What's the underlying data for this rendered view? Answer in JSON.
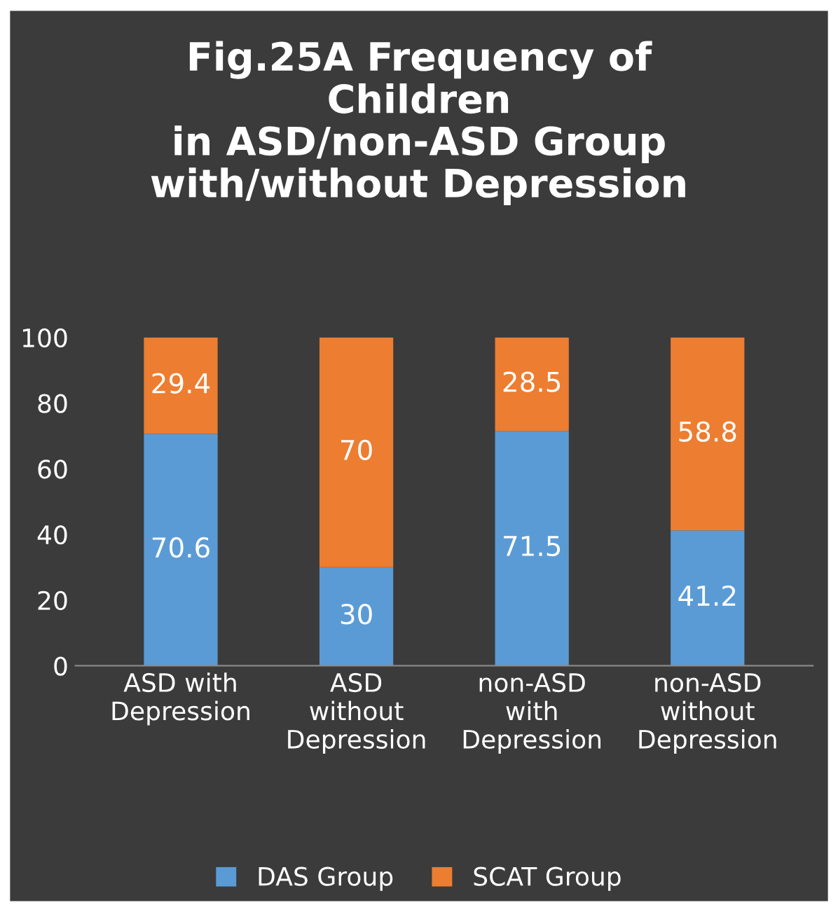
{
  "chart_data": {
    "type": "bar",
    "title": "Fig.25A Frequency of\nChildren\nin ASD/non-ASD Group\nwith/without Depression",
    "categories": [
      "ASD with\nDepression",
      "ASD\nwithout\nDepression",
      "non-ASD\nwith\nDepression",
      "non-ASD\nwithout\nDepression"
    ],
    "series": [
      {
        "name": "DAS Group",
        "color": "#5b9bd5",
        "values": [
          70.6,
          30,
          71.5,
          41.2
        ]
      },
      {
        "name": "SCAT Group",
        "color": "#ed7d31",
        "values": [
          29.4,
          70,
          28.5,
          58.8
        ]
      }
    ],
    "stacked": true,
    "data_labels": true,
    "ylim": [
      0,
      100
    ],
    "yticks": [
      0,
      20,
      40,
      60,
      80,
      100
    ],
    "grid": false,
    "legend": "bottom"
  }
}
